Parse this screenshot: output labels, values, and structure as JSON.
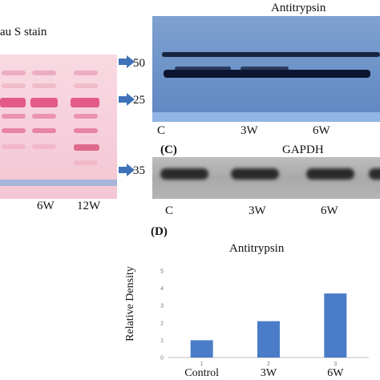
{
  "panel_a": {
    "title": "au S stain",
    "lanes": [
      "6W",
      "12W"
    ],
    "markers": [
      "50",
      "25",
      "35"
    ]
  },
  "panel_b": {
    "title": "Antitrypsin",
    "lanes": [
      "C",
      "3W",
      "6W"
    ]
  },
  "panel_c": {
    "letter": "(C)",
    "title": "GAPDH",
    "lanes": [
      "C",
      "3W",
      "6W"
    ]
  },
  "panel_d": {
    "letter": "(D)"
  },
  "colors": {
    "bar": "#4a7cc7",
    "arrow": "#3f72b8",
    "axis": "#bfbfbf"
  },
  "chart_data": {
    "type": "bar",
    "title": "Antitrypsin",
    "ylabel": "Relative Density",
    "xlabel": "",
    "categories": [
      "Control",
      "3W",
      "6W"
    ],
    "category_numbers": [
      "1",
      "2",
      "3"
    ],
    "values": [
      1.0,
      2.1,
      3.7
    ],
    "ylim": [
      0,
      5
    ],
    "yticks": [
      "0",
      "1",
      "2",
      "3",
      "4",
      "5"
    ],
    "grid": false,
    "legend": "none"
  }
}
